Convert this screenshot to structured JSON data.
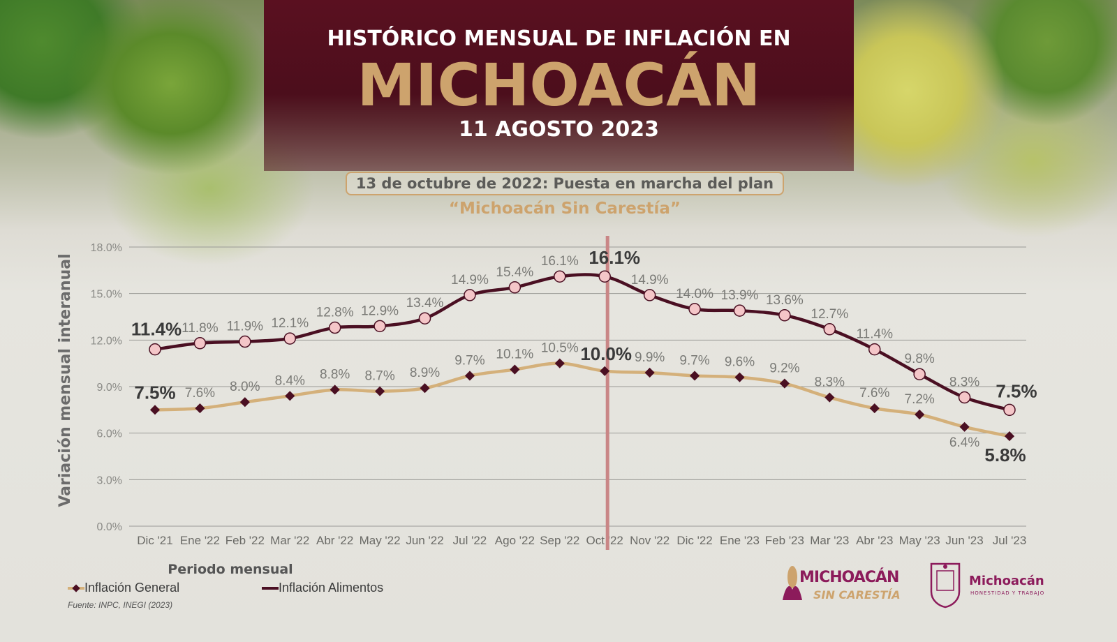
{
  "header": {
    "line1": "HISTÓRICO MENSUAL DE INFLACIÓN EN",
    "line2": "MICHOACÁN",
    "date": "11 AGOSTO 2023"
  },
  "plan": {
    "label": "13 de octubre de 2022: Puesta en marcha del plan",
    "name": "“Michoacán Sin Carestía”"
  },
  "colors": {
    "alimentos": "#4a0f22",
    "general": "#d4b07a",
    "marker_fill": "#f4c6c8",
    "plan_line": "#c98686",
    "gold": "#cda36d"
  },
  "chart_data": {
    "type": "line",
    "ylabel": "Variación mensual interanual",
    "xlabel": "Periodo mensual",
    "ylim": [
      0,
      18
    ],
    "yticks": [
      "0.0%",
      "3.0%",
      "6.0%",
      "9.0%",
      "12.0%",
      "15.0%",
      "18.0%"
    ],
    "grid": true,
    "categories": [
      "Dic '21",
      "Ene '22",
      "Feb '22",
      "Mar '22",
      "Abr '22",
      "May '22",
      "Jun '22",
      "Jul '22",
      "Ago '22",
      "Sep '22",
      "Oct '22",
      "Nov '22",
      "Dic '22",
      "Ene '23",
      "Feb '23",
      "Mar '23",
      "Abr '23",
      "May '23",
      "Jun '23",
      "Jul '23"
    ],
    "series": [
      {
        "name": "Inflación Alimentos",
        "values": [
          11.4,
          11.8,
          11.9,
          12.1,
          12.8,
          12.9,
          13.4,
          14.9,
          15.4,
          16.1,
          16.1,
          14.9,
          14.0,
          13.9,
          13.6,
          12.7,
          11.4,
          9.8,
          8.3,
          7.5
        ],
        "labels": [
          "11.4%",
          "11.8%",
          "11.9%",
          "12.1%",
          "12.8%",
          "12.9%",
          "13.4%",
          "14.9%",
          "15.4%",
          "16.1%",
          "16.1%",
          "14.9%",
          "14.0%",
          "13.9%",
          "13.6%",
          "12.7%",
          "11.4%",
          "9.8%",
          "8.3%",
          "7.5%"
        ]
      },
      {
        "name": "Inflación General",
        "values": [
          7.5,
          7.6,
          8.0,
          8.4,
          8.8,
          8.7,
          8.9,
          9.7,
          10.1,
          10.5,
          10.0,
          9.9,
          9.7,
          9.6,
          9.2,
          8.3,
          7.6,
          7.2,
          6.4,
          5.8
        ],
        "labels": [
          "7.5%",
          "7.6%",
          "8.0%",
          "8.4%",
          "8.8%",
          "8.7%",
          "8.9%",
          "9.7%",
          "10.1%",
          "10.5%",
          "10.0%",
          "9.9%",
          "9.7%",
          "9.6%",
          "9.2%",
          "8.3%",
          "7.6%",
          "7.2%",
          "6.4%",
          "5.8%"
        ]
      }
    ],
    "highlight_category": "Oct '22"
  },
  "legend": {
    "general": "Inflación General",
    "alimentos": "Inflación Alimentos"
  },
  "source": "Fuente: INPC, INEGI (2023)",
  "logos": {
    "carestia_line1": "MICHOACÁN",
    "carestia_line2": "SIN CARESTÍA",
    "gobierno_name": "Michoacán",
    "gobierno_motto": "HONESTIDAD Y TRABAJO"
  }
}
